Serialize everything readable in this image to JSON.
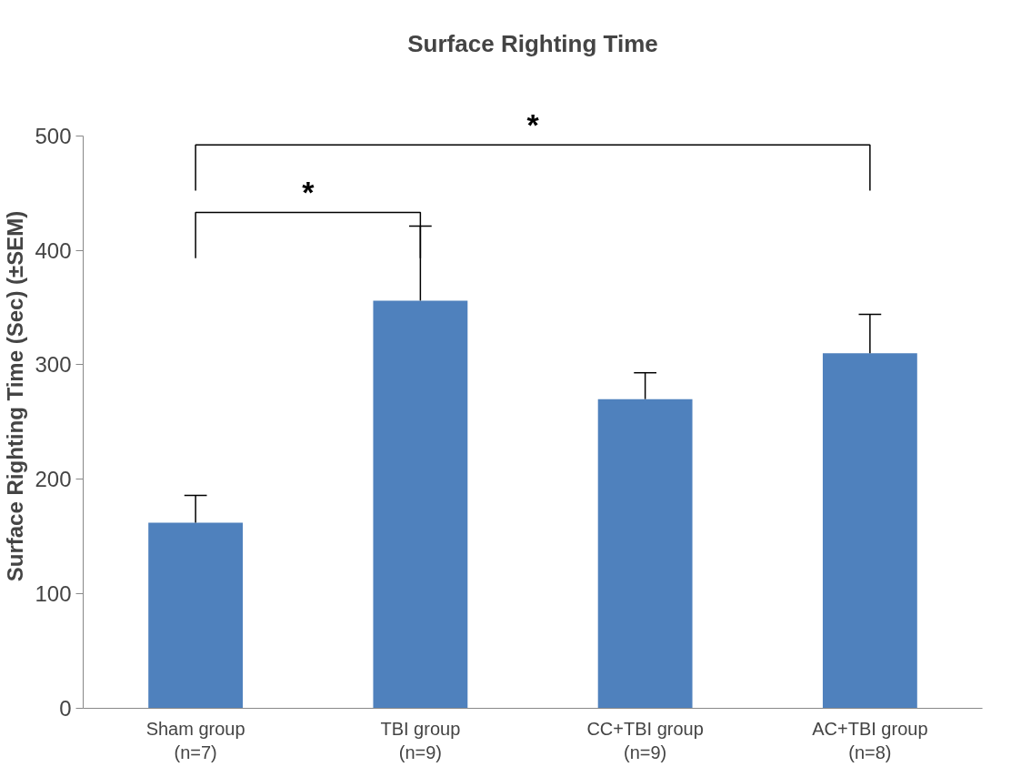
{
  "chart_data": {
    "type": "bar",
    "title": "Surface Righting Time",
    "ylabel": "Surface Righting Time (Sec) (±SEM)",
    "categories": [
      "Sham group\n(n=7)",
      "TBI group\n(n=9)",
      "CC+TBI group\n(n=9)",
      "AC+TBI group\n(n=8)"
    ],
    "values": [
      162,
      356,
      270,
      310
    ],
    "errors": [
      [
        162,
        186
      ],
      [
        356,
        421
      ],
      [
        270,
        293
      ],
      [
        310,
        344
      ]
    ],
    "color": "#4f81bd",
    "ylim": [
      0,
      500
    ],
    "yticks": [
      0,
      100,
      200,
      300,
      400,
      500
    ],
    "grid": false,
    "annotations": [
      "*",
      "*"
    ]
  }
}
